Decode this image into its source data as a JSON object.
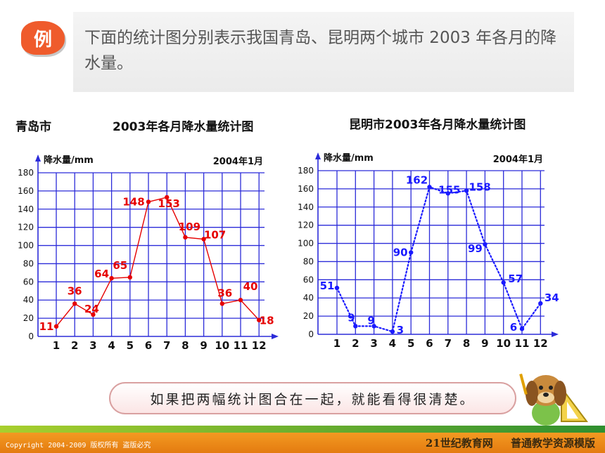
{
  "header": {
    "badge": "例",
    "intro": "下面的统计图分别表示我国青岛、昆明两个城市 2003 年各月的降水量。"
  },
  "chart_data": [
    {
      "type": "line",
      "city": "青岛市",
      "title": "2003年各月降水量统计图",
      "ylabel": "降水量/mm",
      "date_note": "2004年1月",
      "categories": [
        "1",
        "2",
        "3",
        "4",
        "5",
        "6",
        "7",
        "8",
        "9",
        "10",
        "11",
        "12"
      ],
      "ytick_labels": [
        "0",
        "20",
        "40",
        "60",
        "80",
        "100",
        "120",
        "140",
        "160",
        "180"
      ],
      "ylim": [
        0,
        180
      ],
      "values": [
        11,
        36,
        24,
        64,
        65,
        148,
        153,
        109,
        107,
        36,
        40,
        18
      ],
      "data_labels": [
        "11",
        "36",
        "24",
        "64",
        "65",
        "148",
        "153",
        "109",
        "107",
        "36",
        "40",
        "18"
      ],
      "line_style": "solid",
      "color": "#e60000",
      "grid": true
    },
    {
      "type": "line",
      "title": "昆明市2003年各月降水量统计图",
      "ylabel": "降水量/mm",
      "date_note": "2004年1月",
      "categories": [
        "1",
        "2",
        "3",
        "4",
        "5",
        "6",
        "7",
        "8",
        "9",
        "10",
        "11",
        "12"
      ],
      "ytick_labels": [
        "0",
        "20",
        "40",
        "60",
        "80",
        "100",
        "120",
        "140",
        "160",
        "180"
      ],
      "ylim": [
        0,
        180
      ],
      "values": [
        51,
        9,
        9,
        3,
        90,
        162,
        155,
        158,
        99,
        57,
        6,
        34
      ],
      "data_labels": [
        "51",
        "9",
        "9",
        "3",
        "90",
        "162",
        "155",
        "158",
        "99",
        "57",
        "6",
        "34"
      ],
      "line_style": "dotted",
      "color": "#1a1aff",
      "grid": true
    }
  ],
  "bubble_text": "如果把两幅统计图合在一起，就能看得很清楚。",
  "footer": {
    "copyright": "Copyright 2004-2009 版权所有 盗版必究",
    "brand": "21世纪教育网 普通教学资源模版"
  }
}
